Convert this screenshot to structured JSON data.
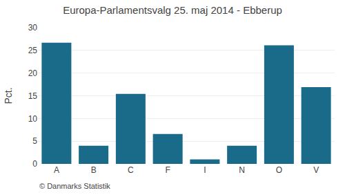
{
  "chart_data": {
    "type": "bar",
    "title": "Europa-Parlamentsvalg 25. maj 2014 - Ebberup",
    "categories": [
      "A",
      "B",
      "C",
      "F",
      "I",
      "N",
      "O",
      "V"
    ],
    "values": [
      26.7,
      4.0,
      15.4,
      6.6,
      1.0,
      4.0,
      26.1,
      16.9
    ],
    "color": "#1a6b8a",
    "ylabel": "Pct.",
    "ylim": [
      0,
      30
    ],
    "yticks": [
      0,
      5,
      10,
      15,
      20,
      25,
      30
    ],
    "grid": true,
    "annotations": [
      "© Danmarks Statistik"
    ]
  }
}
